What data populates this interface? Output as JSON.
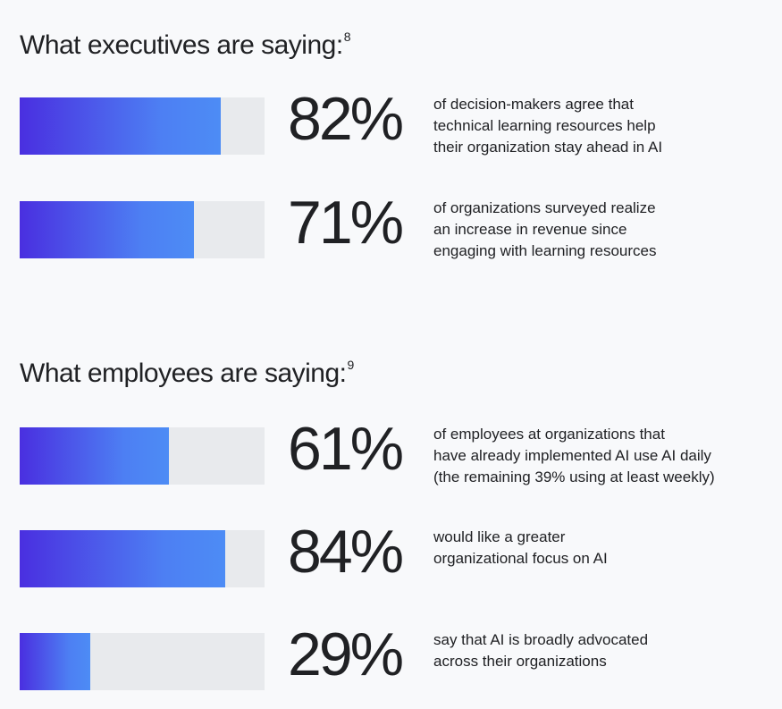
{
  "sections": [
    {
      "title": "What executives are saying:",
      "footnote": "8",
      "stats": [
        {
          "percent": 82,
          "label": "82%",
          "text": "of decision-makers agree that\ntechnical learning resources help\ntheir organization stay ahead in AI"
        },
        {
          "percent": 71,
          "label": "71%",
          "text": "of organizations surveyed realize\nan increase in revenue since\nengaging with learning resources"
        }
      ]
    },
    {
      "title": "What employees are saying:",
      "footnote": "9",
      "stats": [
        {
          "percent": 61,
          "label": "61%",
          "text": "of employees at organizations that\nhave already implemented AI use AI daily\n(the remaining 39% using at least weekly)"
        },
        {
          "percent": 84,
          "label": "84%",
          "text": "would like a greater\norganizational focus on AI"
        },
        {
          "percent": 29,
          "label": "29%",
          "text": "say that AI is broadly advocated\nacross their organizations"
        }
      ]
    }
  ],
  "chart_data": {
    "type": "bar",
    "orientation": "horizontal",
    "ylim": [
      0,
      100
    ],
    "categories": [
      "of decision-makers agree that technical learning resources help their organization stay ahead in AI",
      "of organizations surveyed realize an increase in revenue since engaging with learning resources",
      "of employees at organizations that have already implemented AI use AI daily (the remaining 39% using at least weekly)",
      "would like a greater organizational focus on AI",
      "say that AI is broadly advocated across their organizations"
    ],
    "values": [
      82,
      71,
      61,
      84,
      29
    ],
    "colors": {
      "fill_start": "#4a2fe0",
      "fill_end": "#4d8cf5",
      "track": "#e8eaed",
      "background": "#f8f9fb",
      "text": "#202124"
    }
  }
}
